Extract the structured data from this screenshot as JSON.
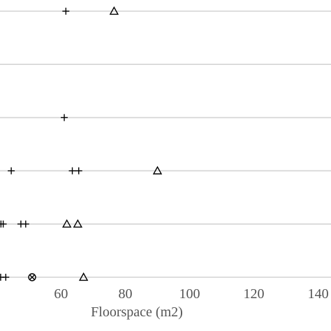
{
  "chart_data": {
    "type": "scatter",
    "xlabel": "Floorspace (m2)",
    "x_ticks": [
      {
        "value": 60,
        "label": "60"
      },
      {
        "value": 80,
        "label": "80"
      },
      {
        "value": 100,
        "label": "100"
      },
      {
        "value": 120,
        "label": "120"
      },
      {
        "value": 140,
        "label": "140"
      }
    ],
    "xlim": [
      41,
      144
    ],
    "grid": true,
    "rows": [
      {
        "points": [
          {
            "x": 61.5,
            "marker": "plus"
          },
          {
            "x": 76.5,
            "marker": "triangle"
          }
        ]
      },
      {
        "points": []
      },
      {
        "points": [
          {
            "x": 61.0,
            "marker": "plus"
          }
        ]
      },
      {
        "points": [
          {
            "x": 44.5,
            "marker": "plus"
          },
          {
            "x": 63.5,
            "marker": "plus"
          },
          {
            "x": 65.5,
            "marker": "plus"
          },
          {
            "x": 90.0,
            "marker": "triangle"
          }
        ]
      },
      {
        "points": [
          {
            "x": 41.3,
            "marker": "plus"
          },
          {
            "x": 42.0,
            "marker": "plus"
          },
          {
            "x": 47.5,
            "marker": "plus"
          },
          {
            "x": 49.0,
            "marker": "plus"
          },
          {
            "x": 61.8,
            "marker": "triangle"
          },
          {
            "x": 65.2,
            "marker": "triangle"
          }
        ]
      },
      {
        "points": [
          {
            "x": 41.2,
            "marker": "plus"
          },
          {
            "x": 42.8,
            "marker": "plus"
          },
          {
            "x": 51.0,
            "marker": "circle-x"
          },
          {
            "x": 67.0,
            "marker": "triangle"
          }
        ]
      }
    ]
  }
}
